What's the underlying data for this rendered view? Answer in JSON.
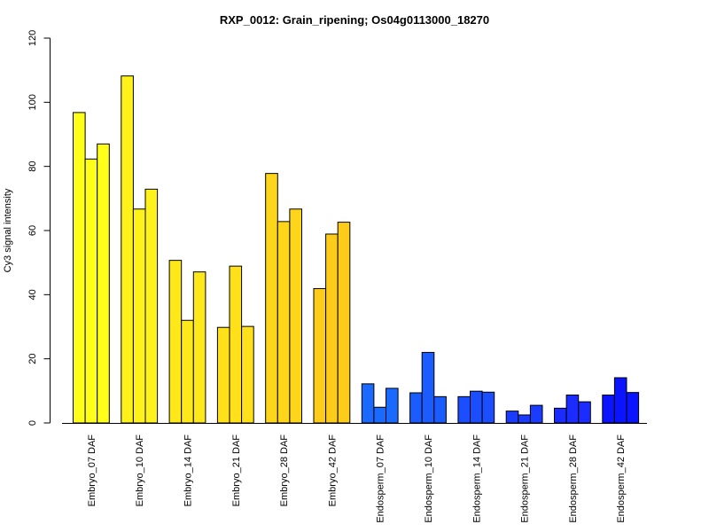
{
  "chart_data": {
    "type": "bar",
    "title": "RXP_0012: Grain_ripening; Os04g0113000_18270",
    "xlabel": "",
    "ylabel": "Cy3 signal intensity",
    "ylim": [
      0,
      120
    ],
    "yticks": [
      0,
      20,
      40,
      60,
      80,
      100,
      120
    ],
    "grid": false,
    "legend": "none",
    "groups": [
      {
        "label": "Embryo_07 DAF",
        "values": [
          96.8,
          82.3,
          87.0
        ],
        "color": "#FFFF1A"
      },
      {
        "label": "Embryo_10 DAF",
        "values": [
          108.2,
          66.7,
          72.9
        ],
        "color": "#FFF21A"
      },
      {
        "label": "Embryo_14 DAF",
        "values": [
          50.7,
          32.0,
          47.1
        ],
        "color": "#FFE81A"
      },
      {
        "label": "Embryo_21 DAF",
        "values": [
          29.8,
          48.9,
          30.1
        ],
        "color": "#FFE01A"
      },
      {
        "label": "Embryo_28 DAF",
        "values": [
          77.8,
          62.8,
          66.7
        ],
        "color": "#FDD51A"
      },
      {
        "label": "Embryo_42 DAF",
        "values": [
          41.9,
          58.9,
          62.6
        ],
        "color": "#FDCC1A"
      },
      {
        "label": "Endosperm_07 DAF",
        "values": [
          12.2,
          4.9,
          10.8
        ],
        "color": "#1A6AFF"
      },
      {
        "label": "Endosperm_10 DAF",
        "values": [
          9.4,
          22.0,
          8.2
        ],
        "color": "#1A5CFF"
      },
      {
        "label": "Endosperm_14 DAF",
        "values": [
          8.2,
          9.9,
          9.6
        ],
        "color": "#1A4EFF"
      },
      {
        "label": "Endosperm_21 DAF",
        "values": [
          3.7,
          2.5,
          5.5
        ],
        "color": "#1A3CFF"
      },
      {
        "label": "Endosperm_28 DAF",
        "values": [
          4.6,
          8.7,
          6.6
        ],
        "color": "#1A2CFF"
      },
      {
        "label": "Endosperm_42 DAF",
        "values": [
          8.7,
          14.1,
          9.5
        ],
        "color": "#0A14FF"
      }
    ]
  }
}
